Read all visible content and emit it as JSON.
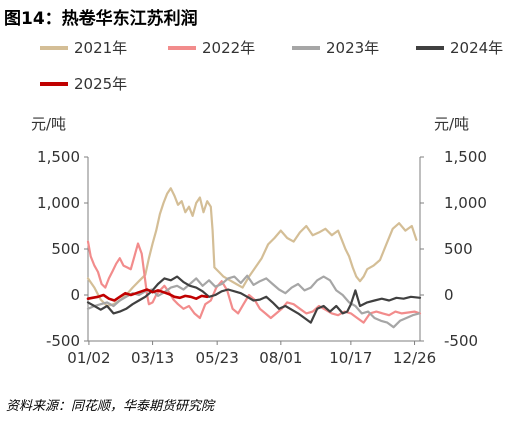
{
  "figure": {
    "title": "图14：热卷华东江苏利润",
    "source": "资料来源：同花顺，华泰期货研究院"
  },
  "chart_data": {
    "type": "line",
    "left_unit": "元/吨",
    "right_unit": "元/吨",
    "ylim": [
      -500,
      1500
    ],
    "yticks": [
      -500,
      0,
      500,
      1000,
      1500
    ],
    "ytick_labels": [
      "-500",
      "0",
      "500",
      "1,000",
      "1,500"
    ],
    "xlim": [
      1,
      366
    ],
    "x_unit": "day_of_year",
    "xticks": [
      {
        "label": "01/02",
        "x": 2
      },
      {
        "label": "03/13",
        "x": 72
      },
      {
        "label": "05/23",
        "x": 143
      },
      {
        "label": "08/01",
        "x": 213
      },
      {
        "label": "10/17",
        "x": 290
      },
      {
        "label": "12/26",
        "x": 360
      }
    ],
    "series": [
      {
        "name": "2021年",
        "color": "#D4BE96",
        "x": [
          1,
          8,
          15,
          22,
          29,
          36,
          43,
          50,
          57,
          64,
          68,
          72,
          76,
          80,
          84,
          88,
          92,
          96,
          100,
          104,
          108,
          112,
          116,
          120,
          124,
          128,
          132,
          136,
          138,
          140,
          145,
          150,
          157,
          164,
          171,
          178,
          185,
          192,
          199,
          206,
          213,
          220,
          227,
          234,
          241,
          248,
          255,
          262,
          269,
          276,
          280,
          284,
          288,
          292,
          296,
          300,
          304,
          308,
          315,
          322,
          329,
          336,
          343,
          350,
          357,
          362
        ],
        "y": [
          180,
          80,
          -50,
          -120,
          -100,
          -60,
          0,
          80,
          150,
          220,
          400,
          560,
          700,
          880,
          1000,
          1100,
          1160,
          1080,
          980,
          1020,
          900,
          960,
          860,
          1000,
          1060,
          900,
          1020,
          960,
          700,
          300,
          250,
          200,
          160,
          120,
          80,
          200,
          300,
          400,
          550,
          620,
          700,
          620,
          580,
          680,
          750,
          650,
          680,
          720,
          650,
          700,
          600,
          500,
          420,
          300,
          200,
          150,
          200,
          280,
          320,
          380,
          550,
          720,
          780,
          700,
          750,
          600
        ]
      },
      {
        "name": "2022年",
        "color": "#F28C8C",
        "x": [
          1,
          4,
          8,
          12,
          16,
          20,
          24,
          28,
          32,
          36,
          40,
          44,
          48,
          52,
          56,
          60,
          62,
          64,
          66,
          68,
          72,
          76,
          80,
          85,
          90,
          95,
          100,
          106,
          112,
          118,
          124,
          130,
          136,
          142,
          148,
          154,
          160,
          166,
          172,
          178,
          184,
          190,
          196,
          202,
          208,
          214,
          220,
          227,
          234,
          241,
          248,
          255,
          262,
          269,
          276,
          283,
          290,
          297,
          304,
          311,
          318,
          325,
          332,
          339,
          346,
          353,
          360,
          366
        ],
        "y": [
          580,
          420,
          320,
          250,
          120,
          80,
          180,
          260,
          340,
          400,
          320,
          300,
          280,
          420,
          560,
          450,
          300,
          150,
          0,
          -100,
          -80,
          0,
          50,
          100,
          30,
          -50,
          -100,
          -150,
          -120,
          -200,
          -250,
          -100,
          -60,
          80,
          150,
          50,
          -150,
          -200,
          -100,
          0,
          -50,
          -150,
          -200,
          -250,
          -200,
          -150,
          -80,
          -100,
          -150,
          -200,
          -180,
          -120,
          -160,
          -200,
          -220,
          -180,
          -200,
          -250,
          -300,
          -200,
          -180,
          -200,
          -220,
          -180,
          -200,
          -190,
          -180,
          -200
        ]
      },
      {
        "name": "2023年",
        "color": "#A6A6A6",
        "x": [
          1,
          8,
          15,
          22,
          29,
          36,
          43,
          50,
          57,
          64,
          71,
          78,
          85,
          92,
          99,
          106,
          113,
          120,
          127,
          134,
          141,
          148,
          155,
          162,
          169,
          176,
          183,
          190,
          197,
          204,
          211,
          218,
          225,
          232,
          239,
          246,
          253,
          260,
          267,
          274,
          281,
          288,
          295,
          302,
          309,
          316,
          323,
          330,
          337,
          344,
          351,
          358,
          365
        ],
        "y": [
          -150,
          -120,
          -100,
          -80,
          -120,
          -60,
          -20,
          20,
          0,
          40,
          60,
          -10,
          30,
          80,
          100,
          60,
          120,
          180,
          100,
          160,
          90,
          120,
          180,
          200,
          130,
          210,
          110,
          150,
          180,
          120,
          60,
          20,
          80,
          120,
          50,
          80,
          160,
          200,
          160,
          50,
          0,
          -80,
          -120,
          -200,
          -180,
          -250,
          -280,
          -300,
          -350,
          -280,
          -250,
          -220,
          -200
        ]
      },
      {
        "name": "2024年",
        "color": "#404040",
        "x": [
          1,
          8,
          15,
          22,
          29,
          36,
          43,
          50,
          57,
          64,
          71,
          78,
          85,
          92,
          99,
          106,
          113,
          120,
          127,
          134,
          141,
          148,
          155,
          162,
          169,
          176,
          183,
          190,
          197,
          204,
          211,
          218,
          225,
          232,
          239,
          246,
          253,
          260,
          267,
          274,
          281,
          286,
          290,
          295,
          300,
          308,
          316,
          324,
          332,
          340,
          348,
          356,
          366
        ],
        "y": [
          -80,
          -120,
          -160,
          -120,
          -200,
          -180,
          -150,
          -100,
          -60,
          -20,
          40,
          120,
          180,
          160,
          200,
          140,
          100,
          80,
          40,
          -20,
          0,
          40,
          60,
          40,
          20,
          -20,
          -60,
          -50,
          -20,
          -80,
          -150,
          -120,
          -160,
          -200,
          -250,
          -300,
          -150,
          -120,
          -180,
          -120,
          -200,
          -180,
          -100,
          50,
          -120,
          -80,
          -60,
          -40,
          -60,
          -30,
          -40,
          -20,
          -30
        ]
      },
      {
        "name": "2025年",
        "color": "#C00000",
        "x": [
          1,
          6,
          12,
          18,
          24,
          30,
          36,
          42,
          48,
          54,
          60,
          66,
          72,
          78,
          84,
          90,
          96,
          102,
          108,
          114,
          120,
          126,
          132
        ],
        "y": [
          -40,
          -30,
          -20,
          0,
          -40,
          -60,
          -20,
          20,
          0,
          20,
          40,
          60,
          30,
          50,
          30,
          10,
          -20,
          -30,
          -10,
          -20,
          -40,
          -10,
          -20
        ]
      }
    ]
  }
}
